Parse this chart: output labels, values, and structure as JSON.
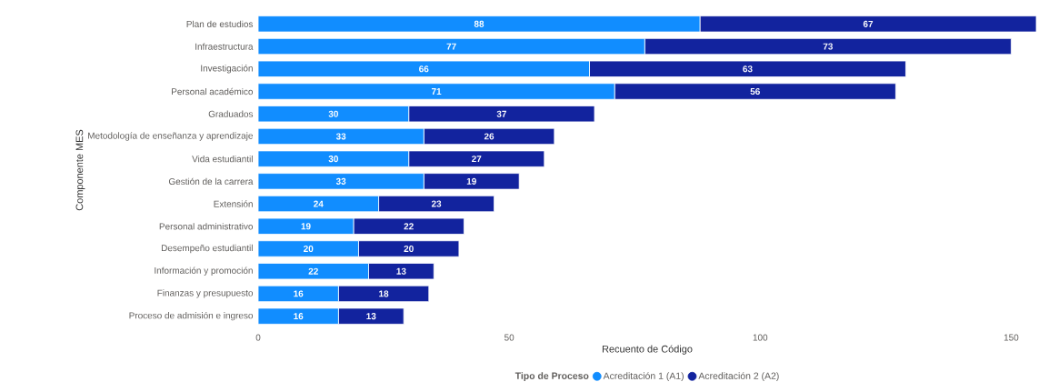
{
  "chart_data": {
    "type": "bar",
    "orientation": "horizontal",
    "stacked": true,
    "xlabel": "Recuento de Código",
    "ylabel": "Componente MES",
    "legend_title": "Tipo de  Proceso",
    "legend": "bottom",
    "data_labels": true,
    "categories": [
      "Plan de estudios",
      "Infraestructura",
      "Investigación",
      "Personal académico",
      "Graduados",
      "Metodología de enseñanza y aprendizaje",
      "Vida estudiantil",
      "Gestión de la carrera",
      "Extensión",
      "Personal administrativo",
      "Desempeño estudiantil",
      "Información y promoción",
      "Finanzas y presupuesto",
      "Proceso de admisión e ingreso"
    ],
    "series": [
      {
        "name": "Acreditación 1 (A1)",
        "color": "#118dff",
        "values": [
          88,
          77,
          66,
          71,
          30,
          33,
          30,
          33,
          24,
          19,
          20,
          22,
          16,
          16
        ]
      },
      {
        "name": "Acreditación 2 (A2)",
        "color": "#12239e",
        "values": [
          67,
          73,
          63,
          56,
          37,
          26,
          27,
          19,
          23,
          22,
          20,
          13,
          18,
          13
        ]
      }
    ],
    "xlim": [
      0,
      155
    ],
    "xticks": [
      0,
      50,
      100,
      150
    ]
  }
}
